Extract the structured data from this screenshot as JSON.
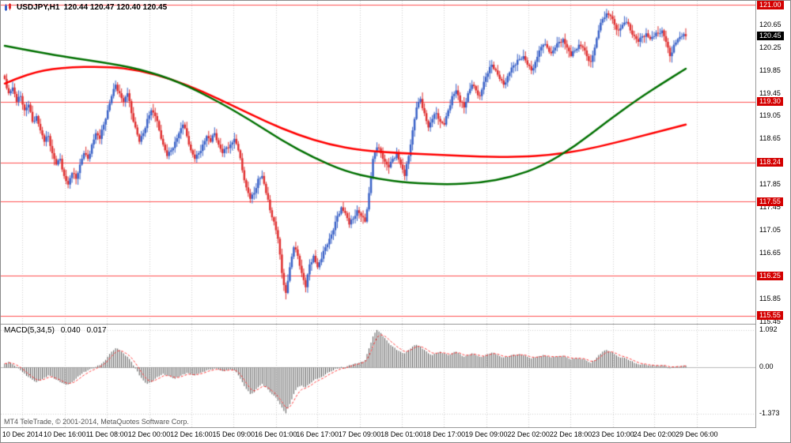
{
  "header": {
    "symbol": "USDJPY,H1",
    "quotes": "120.44 120.47 120.40 120.45"
  },
  "macd_header": {
    "name": "MACD(5,34,5)",
    "value": "0.040",
    "signal": "0.017"
  },
  "footer": {
    "copyright": "MT4 TeleTrade, © 2001-2014, MetaQuotes Software Corp."
  },
  "colors": {
    "bull_candle": "#3A62C8",
    "bear_candle": "#E03030",
    "ma_green": "#007000",
    "ma_red": "#FF0000",
    "level_line": "#FF5050",
    "level_tag_bg": "#D40000",
    "current_tag_bg": "#000000",
    "histogram": "#555555",
    "signal_line": "#FF4040",
    "grid": "#CFCFCF"
  },
  "chart_data": [
    {
      "type": "candlestick",
      "symbol": "USDJPY",
      "timeframe": "H1",
      "open": 120.44,
      "high": 120.47,
      "low": 120.4,
      "close": 120.45,
      "current_price": 120.45,
      "ylim": [
        115.41,
        121.07
      ],
      "grid": "vertical dotted lines at time labels",
      "y_ticks": [
        120.65,
        120.25,
        119.85,
        119.45,
        119.05,
        118.65,
        117.85,
        117.45,
        117.05,
        116.65,
        115.85,
        115.45
      ],
      "level_lines": [
        121.0,
        119.3,
        118.24,
        117.55,
        116.25,
        115.55
      ],
      "x_labels": [
        {
          "text": "10 Dec 2014",
          "pos": 0.026
        },
        {
          "text": "10 Dec 16:00",
          "pos": 0.088
        },
        {
          "text": "11 Dec 08:00",
          "pos": 0.15
        },
        {
          "text": "12 Dec 00:00",
          "pos": 0.212
        },
        {
          "text": "12 Dec 16:00",
          "pos": 0.274
        },
        {
          "text": "15 Dec 09:00",
          "pos": 0.336
        },
        {
          "text": "16 Dec 01:00",
          "pos": 0.398
        },
        {
          "text": "16 Dec 17:00",
          "pos": 0.459
        },
        {
          "text": "17 Dec 09:00",
          "pos": 0.521
        },
        {
          "text": "18 Dec 01:00",
          "pos": 0.583
        },
        {
          "text": "18 Dec 17:00",
          "pos": 0.645
        },
        {
          "text": "19 Dec 09:00",
          "pos": 0.707
        },
        {
          "text": "22 Dec 02:00",
          "pos": 0.769
        },
        {
          "text": "22 Dec 18:00",
          "pos": 0.831
        },
        {
          "text": "23 Dec 10:00",
          "pos": 0.893
        },
        {
          "text": "24 Dec 02:00",
          "pos": 0.954
        },
        {
          "text": "29 Dec 06:00",
          "pos": 1.016
        }
      ],
      "closes": [
        119.7,
        119.45,
        119.55,
        119.3,
        119.4,
        119.15,
        119.25,
        118.95,
        119.05,
        118.8,
        118.6,
        118.7,
        118.4,
        118.2,
        118.3,
        118.0,
        117.85,
        118.05,
        117.95,
        118.2,
        118.4,
        118.3,
        118.55,
        118.75,
        118.65,
        118.9,
        119.15,
        119.4,
        119.6,
        119.45,
        119.3,
        119.45,
        119.1,
        118.85,
        118.6,
        118.75,
        119.0,
        119.15,
        119.05,
        118.8,
        118.55,
        118.35,
        118.45,
        118.6,
        118.75,
        118.9,
        118.7,
        118.45,
        118.3,
        118.4,
        118.55,
        118.7,
        118.6,
        118.75,
        118.55,
        118.4,
        118.5,
        118.55,
        118.65,
        118.45,
        118.1,
        117.8,
        117.6,
        117.7,
        117.95,
        118.0,
        117.7,
        117.4,
        117.2,
        116.9,
        116.3,
        115.95,
        116.4,
        116.75,
        116.6,
        116.3,
        116.05,
        116.45,
        116.6,
        116.4,
        116.55,
        116.75,
        116.9,
        117.05,
        117.3,
        117.45,
        117.35,
        117.15,
        117.25,
        117.4,
        117.3,
        117.2,
        117.7,
        118.3,
        118.5,
        118.4,
        118.25,
        118.15,
        118.3,
        118.4,
        118.2,
        118.0,
        118.35,
        118.8,
        119.2,
        119.35,
        119.1,
        118.85,
        119.0,
        119.1,
        118.95,
        118.9,
        119.15,
        119.4,
        119.5,
        119.3,
        119.2,
        119.45,
        119.6,
        119.5,
        119.4,
        119.65,
        119.8,
        119.95,
        119.85,
        119.7,
        119.6,
        119.75,
        119.9,
        119.95,
        120.05,
        120.1,
        119.95,
        119.85,
        120.0,
        120.2,
        120.3,
        120.25,
        120.15,
        120.25,
        120.35,
        120.4,
        120.25,
        120.1,
        120.2,
        120.3,
        120.25,
        120.1,
        120.0,
        120.25,
        120.55,
        120.75,
        120.85,
        120.8,
        120.65,
        120.55,
        120.65,
        120.7,
        120.55,
        120.45,
        120.35,
        120.45,
        120.5,
        120.4,
        120.45,
        120.5,
        120.55,
        120.35,
        120.1,
        120.3,
        120.4,
        120.45,
        120.45
      ],
      "ma_green_anchors": [
        [
          0,
          120.28
        ],
        [
          12,
          120.12
        ],
        [
          24,
          120.0
        ],
        [
          34,
          119.88
        ],
        [
          44,
          119.65
        ],
        [
          54,
          119.3
        ],
        [
          62,
          118.98
        ],
        [
          70,
          118.62
        ],
        [
          78,
          118.32
        ],
        [
          86,
          118.08
        ],
        [
          94,
          117.95
        ],
        [
          102,
          117.88
        ],
        [
          112,
          117.85
        ],
        [
          120,
          117.88
        ],
        [
          128,
          117.98
        ],
        [
          136,
          118.18
        ],
        [
          144,
          118.52
        ],
        [
          152,
          118.95
        ],
        [
          160,
          119.35
        ],
        [
          166,
          119.62
        ],
        [
          172,
          119.88
        ]
      ],
      "ma_red_anchors": [
        [
          0,
          119.62
        ],
        [
          6,
          119.8
        ],
        [
          14,
          119.9
        ],
        [
          26,
          119.92
        ],
        [
          34,
          119.85
        ],
        [
          42,
          119.7
        ],
        [
          50,
          119.48
        ],
        [
          58,
          119.22
        ],
        [
          66,
          118.95
        ],
        [
          74,
          118.72
        ],
        [
          82,
          118.55
        ],
        [
          90,
          118.45
        ],
        [
          100,
          118.4
        ],
        [
          110,
          118.37
        ],
        [
          120,
          118.34
        ],
        [
          130,
          118.33
        ],
        [
          138,
          118.37
        ],
        [
          146,
          118.45
        ],
        [
          154,
          118.58
        ],
        [
          162,
          118.72
        ],
        [
          172,
          118.9
        ]
      ]
    },
    {
      "type": "bar",
      "name": "MACD(5,34,5)",
      "current_macd": 0.04,
      "current_signal": 0.017,
      "ylim": [
        -1.78,
        1.25
      ],
      "y_ticks": [
        {
          "label": "1.092",
          "value": 1.092
        },
        {
          "label": "0.00",
          "value": 0
        },
        {
          "label": "-1.373",
          "value": -1.373
        }
      ],
      "values": [
        0.1,
        0.15,
        0.08,
        0.0,
        -0.1,
        -0.2,
        -0.3,
        -0.38,
        -0.45,
        -0.4,
        -0.32,
        -0.25,
        -0.3,
        -0.38,
        -0.45,
        -0.5,
        -0.52,
        -0.45,
        -0.35,
        -0.25,
        -0.15,
        -0.1,
        -0.05,
        0.0,
        0.05,
        0.15,
        0.3,
        0.45,
        0.55,
        0.5,
        0.4,
        0.3,
        0.15,
        -0.05,
        -0.25,
        -0.4,
        -0.5,
        -0.45,
        -0.35,
        -0.28,
        -0.2,
        -0.25,
        -0.3,
        -0.35,
        -0.3,
        -0.22,
        -0.18,
        -0.22,
        -0.25,
        -0.2,
        -0.15,
        -0.1,
        -0.08,
        -0.05,
        -0.08,
        -0.12,
        -0.1,
        -0.08,
        -0.1,
        -0.25,
        -0.45,
        -0.65,
        -0.8,
        -0.75,
        -0.6,
        -0.5,
        -0.6,
        -0.75,
        -0.85,
        -1.0,
        -1.2,
        -1.37,
        -1.1,
        -0.8,
        -0.6,
        -0.55,
        -0.6,
        -0.5,
        -0.4,
        -0.35,
        -0.3,
        -0.22,
        -0.15,
        -0.1,
        -0.05,
        0.0,
        -0.02,
        0.05,
        0.08,
        0.1,
        0.15,
        0.2,
        0.55,
        0.9,
        1.09,
        1.0,
        0.85,
        0.7,
        0.6,
        0.5,
        0.45,
        0.4,
        0.5,
        0.6,
        0.65,
        0.6,
        0.5,
        0.4,
        0.35,
        0.4,
        0.45,
        0.4,
        0.35,
        0.4,
        0.45,
        0.38,
        0.3,
        0.35,
        0.4,
        0.35,
        0.3,
        0.32,
        0.38,
        0.42,
        0.38,
        0.32,
        0.28,
        0.3,
        0.35,
        0.35,
        0.38,
        0.35,
        0.3,
        0.25,
        0.28,
        0.32,
        0.35,
        0.32,
        0.28,
        0.3,
        0.32,
        0.33,
        0.28,
        0.22,
        0.25,
        0.26,
        0.24,
        0.18,
        0.12,
        0.2,
        0.35,
        0.45,
        0.5,
        0.45,
        0.38,
        0.3,
        0.28,
        0.25,
        0.18,
        0.12,
        0.08,
        0.08,
        0.06,
        0.04,
        0.03,
        0.04,
        0.05,
        0.02,
        -0.03,
        0.0,
        0.02,
        0.03,
        0.04
      ]
    }
  ]
}
